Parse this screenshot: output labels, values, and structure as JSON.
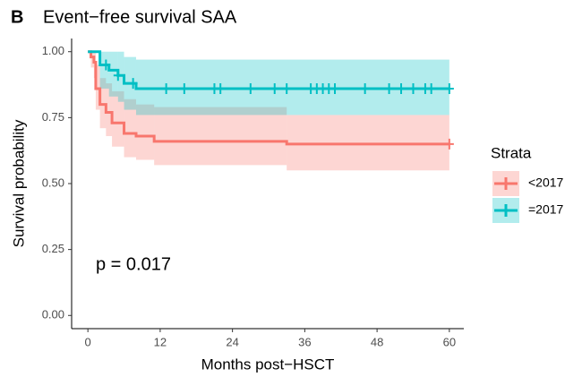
{
  "chart_data": {
    "type": "step",
    "panel_label": "B",
    "title": "Event−free survival SAA",
    "x_label": "Months post−HSCT",
    "y_label": "Survival probability",
    "annotation": "p = 0.017",
    "legend_title": "Strata",
    "xlim": [
      -2.7,
      62.4
    ],
    "ylim": [
      -0.05,
      1.05
    ],
    "xticks": [
      0,
      12,
      24,
      36,
      48,
      60
    ],
    "yticks": [
      {
        "value": 0,
        "label": "0.00"
      },
      {
        "value": 0.25,
        "label": "0.25"
      },
      {
        "value": 0.5,
        "label": "0.50"
      },
      {
        "value": 0.75,
        "label": "0.75"
      },
      {
        "value": 1,
        "label": "1.00"
      }
    ],
    "series": [
      {
        "name": "<2017",
        "color": "#F8766D",
        "x": [
          0,
          0.5,
          1,
          1.3,
          2,
          3,
          4,
          6,
          8,
          11,
          33,
          60
        ],
        "values": [
          1,
          0.98,
          0.96,
          0.86,
          0.8,
          0.77,
          0.73,
          0.69,
          0.68,
          0.66,
          0.65,
          0.65
        ],
        "upper": [
          1,
          1,
          1,
          0.95,
          0.9,
          0.88,
          0.85,
          0.82,
          0.8,
          0.79,
          0.76,
          0.76
        ],
        "lower": [
          1,
          0.94,
          0.9,
          0.78,
          0.71,
          0.68,
          0.64,
          0.6,
          0.59,
          0.57,
          0.55,
          0.55
        ],
        "censor_x": [
          60
        ],
        "censor_y": [
          0.65
        ]
      },
      {
        "name": "=2017",
        "color": "#00BFC4",
        "x": [
          0,
          2,
          3.5,
          5,
          6,
          8,
          60
        ],
        "values": [
          1,
          0.95,
          0.93,
          0.91,
          0.88,
          0.86,
          0.86
        ],
        "upper": [
          1,
          1,
          1,
          1,
          0.98,
          0.97,
          0.97
        ],
        "lower": [
          1,
          0.86,
          0.83,
          0.81,
          0.78,
          0.76,
          0.76
        ],
        "censor_x": [
          3,
          5,
          7.5,
          13,
          16,
          21,
          22,
          27,
          31,
          33,
          37,
          38,
          39,
          40,
          41,
          46,
          50,
          52,
          54,
          56,
          57,
          60
        ],
        "censor_y": [
          0.95,
          0.91,
          0.88,
          0.86,
          0.86,
          0.86,
          0.86,
          0.86,
          0.86,
          0.86,
          0.86,
          0.86,
          0.86,
          0.86,
          0.86,
          0.86,
          0.86,
          0.86,
          0.86,
          0.86,
          0.86,
          0.86
        ]
      }
    ]
  }
}
